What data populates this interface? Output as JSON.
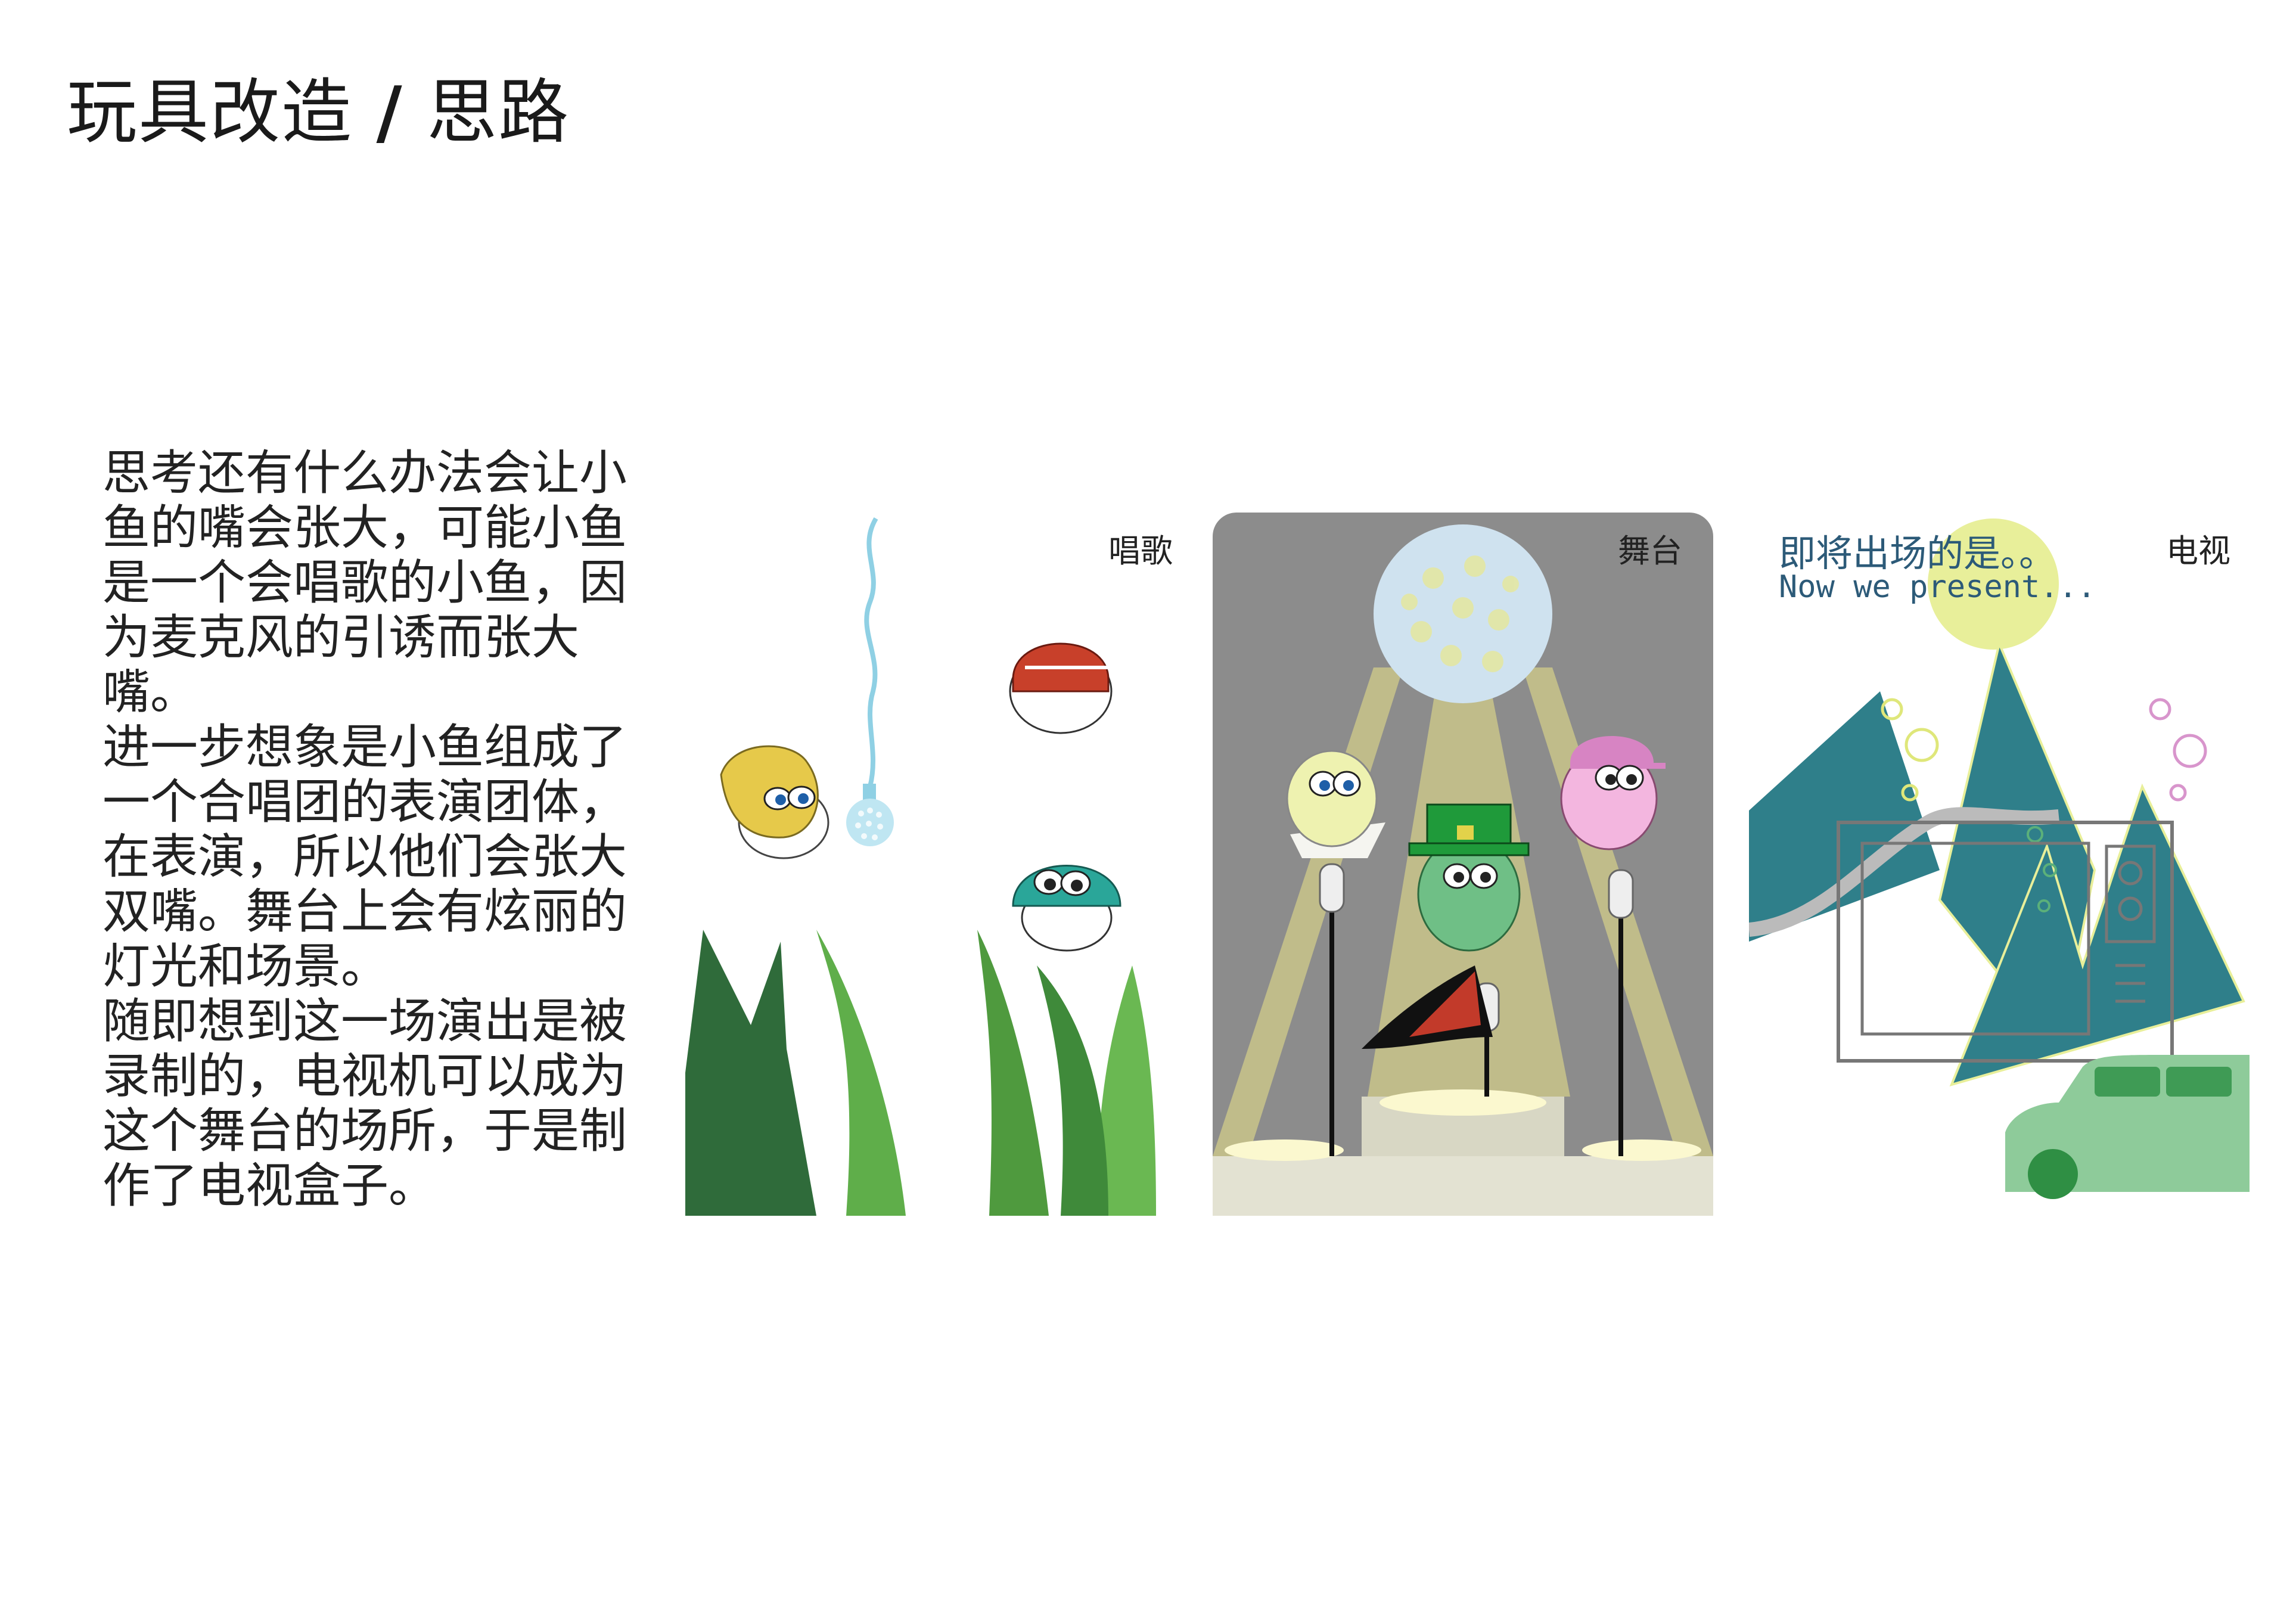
{
  "page": {
    "title_main": "玩具改造",
    "title_sep": "/",
    "title_sub": "思路"
  },
  "description": {
    "paragraphs": [
      "思考还有什么办法会让小鱼的嘴会张大，可能小鱼是一个会唱歌的小鱼，因为麦克风的引诱而张大嘴。",
      "进一步想象是小鱼组成了一个合唱团的表演团体，在表演，所以他们会张大双嘴。舞台上会有炫丽的灯光和场景。",
      "随即想到这一场演出是被录制的，电视机可以成为这个舞台的场所，于是制作了电视盒子。"
    ]
  },
  "panels": {
    "singing": {
      "label": "唱歌"
    },
    "stage": {
      "label": "舞台"
    },
    "tv": {
      "label": "电视",
      "caption_cn": "即将出场的是。。",
      "caption_en": "Now we present..."
    }
  },
  "colors": {
    "stage_bg": "#8c8c8c",
    "spotlight": "#c9c48a",
    "mountain": "#2f7f8a",
    "sun": "#e8ef9a",
    "grass_dark": "#2f6b3a",
    "grass_light": "#5fae4a"
  }
}
